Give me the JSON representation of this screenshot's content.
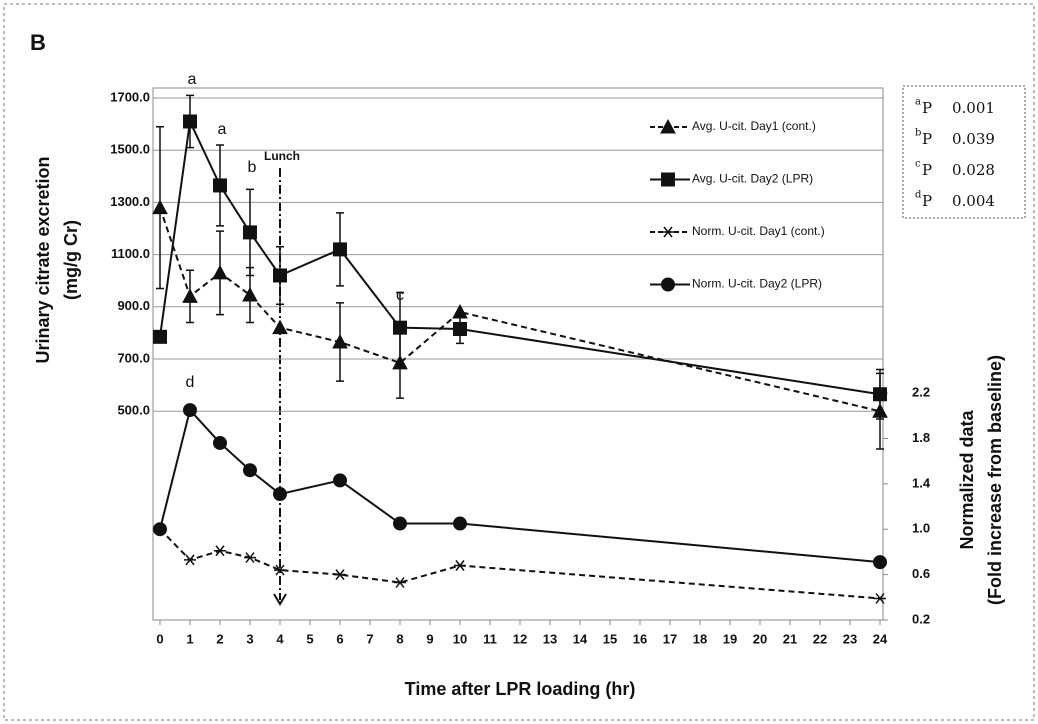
{
  "chart_data": {
    "type": "line",
    "panel": "B",
    "xlabel": "Time after LPR loading (hr)",
    "ylabel": [
      "Urinary citrate excretion",
      "(mg/g Cr)"
    ],
    "y2label": [
      "Normalized  data",
      "(Fold increase from baseline)"
    ],
    "x": [
      0,
      1,
      2,
      3,
      4,
      6,
      8,
      10,
      24
    ],
    "xlim": [
      0,
      24
    ],
    "xticks": [
      0,
      1,
      2,
      3,
      4,
      5,
      6,
      7,
      8,
      9,
      10,
      11,
      12,
      13,
      14,
      15,
      16,
      17,
      18,
      19,
      20,
      21,
      22,
      23,
      24
    ],
    "ylim": [
      -300,
      1700
    ],
    "yticks": [
      {
        "value": 500,
        "label": "500.0"
      },
      {
        "value": 700,
        "label": "700.0"
      },
      {
        "value": 900,
        "label": "900.0"
      },
      {
        "value": 1100,
        "label": "1100.0"
      },
      {
        "value": 1300,
        "label": "1300.0"
      },
      {
        "value": 1500,
        "label": "1500.0"
      },
      {
        "value": 1700,
        "label": "1700.0"
      }
    ],
    "y2lim": [
      0.2,
      4.8
    ],
    "y2ticks": [
      0.2,
      0.6,
      {
        "value": 1,
        "label": "1.0"
      },
      1.4,
      1.8,
      2.2
    ],
    "grid": true,
    "series": [
      {
        "name": "Avg. U-cit. Day1 (cont.)",
        "color": "#111111",
        "marker": "triangle",
        "dash": true,
        "axis": "y",
        "values": [
          1280,
          940,
          1030,
          945,
          820,
          765,
          685,
          880,
          500
        ],
        "errors": [
          310,
          100,
          160,
          105,
          null,
          150,
          135,
          null,
          145
        ]
      },
      {
        "name": "Avg. U-cit. Day2 (LPR)",
        "color": "#111111",
        "marker": "square",
        "dash": false,
        "axis": "y",
        "values": [
          785,
          1610,
          1365,
          1185,
          1020,
          1120,
          820,
          815,
          565
        ],
        "errors": [
          null,
          100,
          155,
          165,
          110,
          140,
          135,
          55,
          95
        ]
      },
      {
        "name": "Norm. U-cit. Day1 (cont.)",
        "color": "#111111",
        "marker": "asterisk",
        "dash": true,
        "axis": "y2",
        "values": [
          1.0,
          0.73,
          0.81,
          0.75,
          0.64,
          0.6,
          0.53,
          0.68,
          0.39
        ]
      },
      {
        "name": "Norm. U-cit. Day2 (LPR)",
        "color": "#111111",
        "marker": "circle",
        "dash": false,
        "axis": "y2",
        "values": [
          1.0,
          2.05,
          1.76,
          1.52,
          1.31,
          1.43,
          1.05,
          1.05,
          0.71
        ]
      }
    ],
    "annotations": [
      "a",
      "a",
      "b",
      "c",
      "d",
      "Lunch"
    ],
    "stats": [
      {
        "sup": "a",
        "label": "P",
        "value": "0.001"
      },
      {
        "sup": "b",
        "label": "P",
        "value": "0.039"
      },
      {
        "sup": "c",
        "label": "P",
        "value": "0.028"
      },
      {
        "sup": "d",
        "label": "P",
        "value": "0.004"
      }
    ]
  }
}
